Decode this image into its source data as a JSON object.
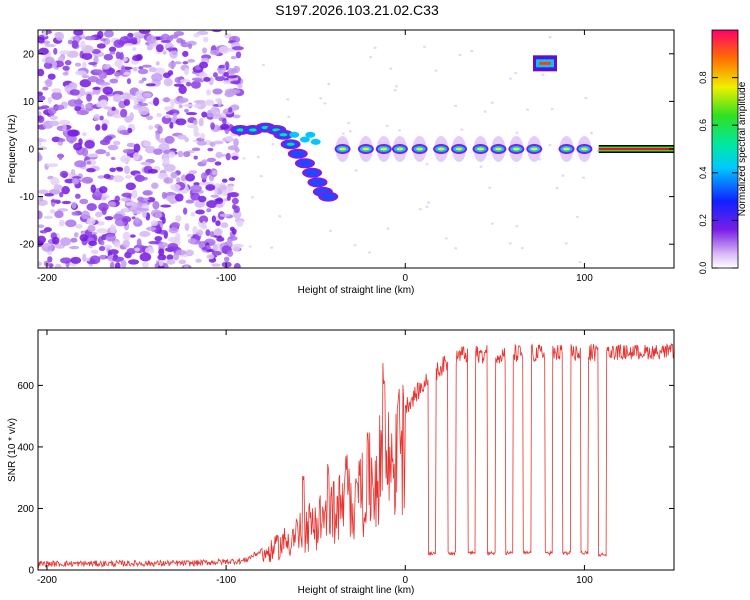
{
  "title": "S197.2026.103.21.02.C33",
  "chart_data": [
    {
      "type": "heatmap",
      "xlabel": "Height of straight line (km)",
      "ylabel": "Frequency (Hz)",
      "xlim": [
        -205,
        150
      ],
      "ylim": [
        -25,
        25
      ],
      "xticks": [
        -200,
        -100,
        0,
        100
      ],
      "yticks": [
        -20,
        -10,
        0,
        10,
        20
      ],
      "colorbar": {
        "label": "Normalized spectral amplitude",
        "range": [
          0,
          1
        ],
        "ticks": [
          "0.0",
          "0.2",
          "0.4",
          "0.6",
          "0.8"
        ]
      },
      "features": {
        "noise_region_km": [
          -205,
          -92
        ],
        "carrier_start_km": -92,
        "carrier_frequency_hz": 0,
        "early_carrier_frequency_hz": 4,
        "sweep_to_frequency_hz": -10,
        "pulse_centers_km": [
          -35,
          -22,
          -12,
          -3,
          8,
          20,
          30,
          42,
          52,
          62,
          72,
          90,
          100
        ],
        "offset_blob": {
          "x_km": 78,
          "frequency_hz": 18
        },
        "continuous_carrier_from_km": 108
      }
    },
    {
      "type": "line",
      "xlabel": "Height of straight line (km)",
      "ylabel": "SNR (10 * v/v)",
      "xlim": [
        -205,
        150
      ],
      "ylim": [
        0,
        780
      ],
      "xticks": [
        -200,
        -100,
        0,
        100
      ],
      "yticks": [
        0,
        200,
        400,
        600
      ],
      "series": [
        {
          "name": "SNR",
          "color": "#e8322e",
          "profile": [
            {
              "x": -205,
              "y": 20
            },
            {
              "x": -120,
              "y": 22
            },
            {
              "x": -90,
              "y": 30
            },
            {
              "x": -75,
              "y": 80
            },
            {
              "x": -60,
              "y": 160
            },
            {
              "x": -45,
              "y": 230
            },
            {
              "x": -30,
              "y": 300
            },
            {
              "x": -15,
              "y": 420
            },
            {
              "x": 0,
              "y": 530
            },
            {
              "x": 10,
              "y": 600
            },
            {
              "x": 20,
              "y": 660
            },
            {
              "x": 30,
              "y": 700
            },
            {
              "x": 150,
              "y": 710
            }
          ],
          "dips": [
            {
              "x": 15,
              "y": 55
            },
            {
              "x": 26,
              "y": 55
            },
            {
              "x": 37,
              "y": 55
            },
            {
              "x": 48,
              "y": 55
            },
            {
              "x": 58,
              "y": 55
            },
            {
              "x": 68,
              "y": 55
            },
            {
              "x": 80,
              "y": 55
            },
            {
              "x": 90,
              "y": 55
            },
            {
              "x": 100,
              "y": 55
            },
            {
              "x": 110,
              "y": 50
            }
          ],
          "spikes": [
            {
              "x": -57,
              "y": 330
            },
            {
              "x": -43,
              "y": 350
            },
            {
              "x": -33,
              "y": 380
            },
            {
              "x": -27,
              "y": 320
            },
            {
              "x": -12,
              "y": 680
            },
            {
              "x": -4,
              "y": 610
            }
          ]
        }
      ]
    }
  ]
}
